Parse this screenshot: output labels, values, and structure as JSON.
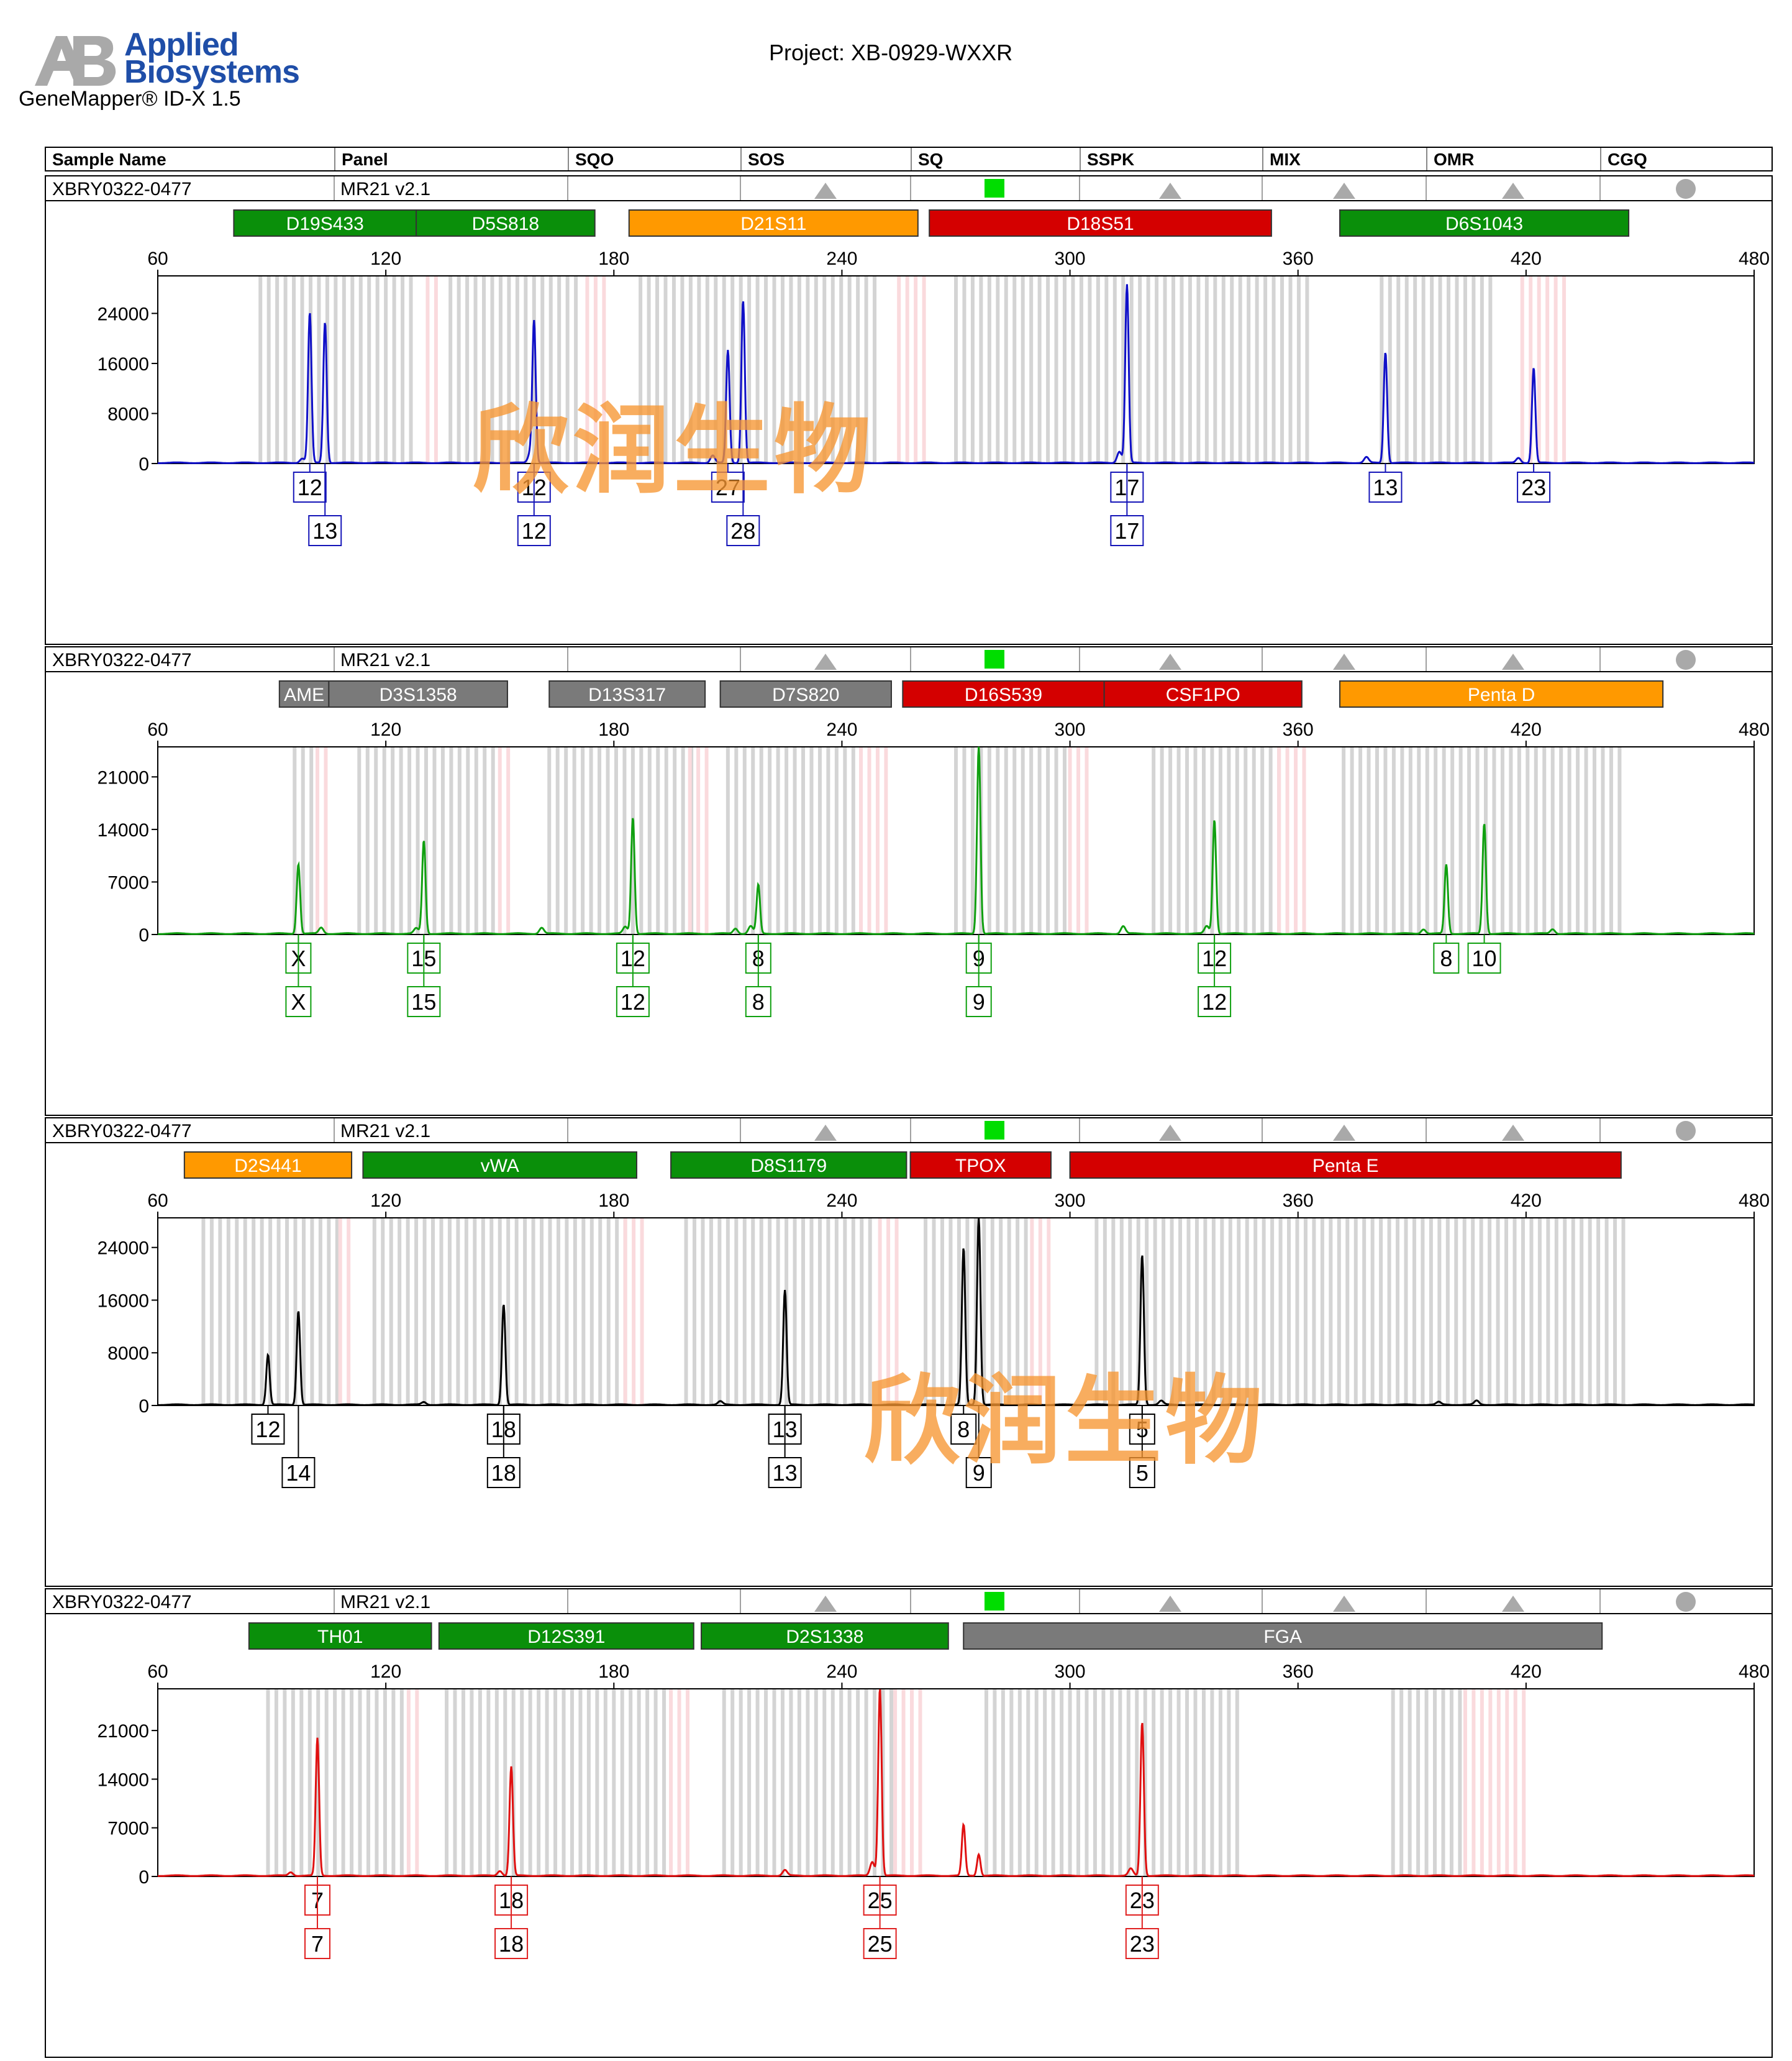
{
  "header": {
    "brand_line1": "Applied",
    "brand_line2": "Biosystems",
    "logo_letters": "AB",
    "software": "GeneMapper® ID-X  1.5",
    "project": "Project: XB-0929-WXXR"
  },
  "columns": [
    "Sample Name",
    "Panel",
    "SQO",
    "SOS",
    "SQ",
    "SSPK",
    "MIX",
    "OMR",
    "CGQ"
  ],
  "colors": {
    "green_marker": "#0a8f0a",
    "orange_marker": "#ff9900",
    "red_marker": "#d40000",
    "gray_marker": "#7a7a7a",
    "flag_pass": "#00dd00",
    "flag_warn": "#a9a9a9",
    "bin_gray": "#d4d4d4",
    "bin_pink": "#fadadd",
    "watermark": "#f6962f"
  },
  "quality_flags": {
    "SOS": "triangle",
    "SQ": "green-square",
    "SSPK": "triangle",
    "MIX": "triangle",
    "OMR": "triangle",
    "CGQ": "circle"
  },
  "watermark": "欣润生物",
  "panels": [
    {
      "sample": "XBRY0322-0477",
      "panel": "MR21  v2.1",
      "dye_color": "#1010c8",
      "label_color": "#1515b8",
      "markers": [
        {
          "name": "D19S433",
          "start": 80,
          "end": 128,
          "color": "green"
        },
        {
          "name": "D5S818",
          "start": 128,
          "end": 175,
          "color": "green"
        },
        {
          "name": "D21S11",
          "start": 184,
          "end": 260,
          "color": "orange"
        },
        {
          "name": "D18S51",
          "start": 263,
          "end": 353,
          "color": "red"
        },
        {
          "name": "D6S1043",
          "start": 371,
          "end": 447,
          "color": "green"
        }
      ],
      "chart_data": {
        "type": "line",
        "xlabel": "",
        "ylabel": "",
        "xlim": [
          60,
          480
        ],
        "xticks": [
          60,
          120,
          180,
          240,
          300,
          360,
          420,
          480
        ],
        "ylim": [
          0,
          30000
        ],
        "yticks": [
          0,
          8000,
          16000,
          24000
        ],
        "peaks": [
          {
            "x": 98,
            "y": 700
          },
          {
            "x": 100,
            "y": 24000
          },
          {
            "x": 104,
            "y": 22500
          },
          {
            "x": 158,
            "y": 1500
          },
          {
            "x": 159,
            "y": 22500
          },
          {
            "x": 206,
            "y": 1200
          },
          {
            "x": 210,
            "y": 18000
          },
          {
            "x": 214,
            "y": 26000
          },
          {
            "x": 313,
            "y": 1800
          },
          {
            "x": 315,
            "y": 28500
          },
          {
            "x": 378,
            "y": 900
          },
          {
            "x": 383,
            "y": 17700
          },
          {
            "x": 418,
            "y": 800
          },
          {
            "x": 422,
            "y": 15200
          }
        ],
        "alleles": [
          {
            "x": 100,
            "row": 1,
            "label": "12"
          },
          {
            "x": 104,
            "row": 2,
            "label": "13"
          },
          {
            "x": 159,
            "row": 1,
            "label": "12"
          },
          {
            "x": 159,
            "row": 2,
            "label": "12"
          },
          {
            "x": 210,
            "row": 1,
            "label": "27"
          },
          {
            "x": 214,
            "row": 2,
            "label": "28"
          },
          {
            "x": 315,
            "row": 1,
            "label": "17"
          },
          {
            "x": 315,
            "row": 2,
            "label": "17"
          },
          {
            "x": 383,
            "row": 1,
            "label": "13"
          },
          {
            "x": 422,
            "row": 1,
            "label": "23"
          }
        ],
        "bins_gray": [
          [
            87,
            127
          ],
          [
            137,
            170
          ],
          [
            187,
            250
          ],
          [
            270,
            364
          ],
          [
            382,
            412
          ]
        ],
        "bins_pink": [
          [
            131,
            135
          ],
          [
            173,
            178
          ],
          [
            255,
            263
          ],
          [
            419,
            430
          ]
        ]
      }
    },
    {
      "sample": "XBRY0322-0477",
      "panel": "MR21  v2.1",
      "dye_color": "#10a010",
      "label_color": "#10a010",
      "markers": [
        {
          "name": "AME",
          "start": 92,
          "end": 105,
          "color": "gray"
        },
        {
          "name": "D3S1358",
          "start": 105,
          "end": 152,
          "color": "gray"
        },
        {
          "name": "D13S317",
          "start": 163,
          "end": 204,
          "color": "gray"
        },
        {
          "name": "D7S820",
          "start": 208,
          "end": 253,
          "color": "gray"
        },
        {
          "name": "D16S539",
          "start": 256,
          "end": 309,
          "color": "red"
        },
        {
          "name": "CSF1PO",
          "start": 309,
          "end": 361,
          "color": "red"
        },
        {
          "name": "Penta D",
          "start": 371,
          "end": 456,
          "color": "orange"
        }
      ],
      "chart_data": {
        "type": "line",
        "xlabel": "",
        "ylabel": "",
        "xlim": [
          60,
          480
        ],
        "xticks": [
          60,
          120,
          180,
          240,
          300,
          360,
          420,
          480
        ],
        "ylim": [
          0,
          25000
        ],
        "yticks": [
          0,
          7000,
          14000,
          21000
        ],
        "peaks": [
          {
            "x": 97,
            "y": 9300
          },
          {
            "x": 103,
            "y": 800
          },
          {
            "x": 128,
            "y": 700
          },
          {
            "x": 130,
            "y": 12400
          },
          {
            "x": 161,
            "y": 800
          },
          {
            "x": 183,
            "y": 900
          },
          {
            "x": 185,
            "y": 15500
          },
          {
            "x": 212,
            "y": 700
          },
          {
            "x": 216,
            "y": 1000
          },
          {
            "x": 218,
            "y": 6500
          },
          {
            "x": 276,
            "y": 25000
          },
          {
            "x": 314,
            "y": 1000
          },
          {
            "x": 336,
            "y": 1000
          },
          {
            "x": 338,
            "y": 15200
          },
          {
            "x": 393,
            "y": 600
          },
          {
            "x": 399,
            "y": 9200
          },
          {
            "x": 409,
            "y": 14700
          },
          {
            "x": 427,
            "y": 600
          }
        ],
        "alleles": [
          {
            "x": 97,
            "row": 1,
            "label": "X"
          },
          {
            "x": 97,
            "row": 2,
            "label": "X"
          },
          {
            "x": 130,
            "row": 1,
            "label": "15"
          },
          {
            "x": 130,
            "row": 2,
            "label": "15"
          },
          {
            "x": 185,
            "row": 1,
            "label": "12"
          },
          {
            "x": 185,
            "row": 2,
            "label": "12"
          },
          {
            "x": 218,
            "row": 1,
            "label": "8"
          },
          {
            "x": 218,
            "row": 2,
            "label": "8"
          },
          {
            "x": 276,
            "row": 1,
            "label": "9"
          },
          {
            "x": 276,
            "row": 2,
            "label": "9"
          },
          {
            "x": 338,
            "row": 1,
            "label": "12"
          },
          {
            "x": 338,
            "row": 2,
            "label": "12"
          },
          {
            "x": 399,
            "row": 1,
            "label": "8"
          },
          {
            "x": 409,
            "row": 1,
            "label": "10"
          }
        ],
        "bins_gray": [
          [
            96,
            102
          ],
          [
            113,
            150
          ],
          [
            163,
            202
          ],
          [
            210,
            244
          ],
          [
            270,
            300
          ],
          [
            322,
            355
          ],
          [
            372,
            446
          ]
        ],
        "bins_pink": [
          [
            102,
            106
          ],
          [
            150,
            154
          ],
          [
            200,
            206
          ],
          [
            245,
            252
          ],
          [
            300,
            305
          ],
          [
            355,
            362
          ]
        ]
      }
    },
    {
      "sample": "XBRY0322-0477",
      "panel": "MR21  v2.1",
      "dye_color": "#000000",
      "label_color": "#000000",
      "markers": [
        {
          "name": "D2S441",
          "start": 67,
          "end": 111,
          "color": "orange"
        },
        {
          "name": "vWA",
          "start": 114,
          "end": 186,
          "color": "green"
        },
        {
          "name": "D8S1179",
          "start": 195,
          "end": 257,
          "color": "green"
        },
        {
          "name": "TPOX",
          "start": 258,
          "end": 295,
          "color": "red"
        },
        {
          "name": "Penta E",
          "start": 300,
          "end": 445,
          "color": "red"
        }
      ],
      "chart_data": {
        "type": "line",
        "xlabel": "",
        "ylabel": "",
        "xlim": [
          60,
          480
        ],
        "xticks": [
          60,
          120,
          180,
          240,
          300,
          360,
          420,
          480
        ],
        "ylim": [
          0,
          28500
        ],
        "yticks": [
          0,
          8000,
          16000,
          24000
        ],
        "peaks": [
          {
            "x": 89,
            "y": 7600
          },
          {
            "x": 97,
            "y": 14300
          },
          {
            "x": 130,
            "y": 400
          },
          {
            "x": 151,
            "y": 15300
          },
          {
            "x": 208,
            "y": 500
          },
          {
            "x": 225,
            "y": 17400
          },
          {
            "x": 272,
            "y": 23800
          },
          {
            "x": 276,
            "y": 28500
          },
          {
            "x": 319,
            "y": 22800
          },
          {
            "x": 324,
            "y": 600
          },
          {
            "x": 397,
            "y": 400
          },
          {
            "x": 407,
            "y": 600
          }
        ],
        "alleles": [
          {
            "x": 89,
            "row": 1,
            "label": "12"
          },
          {
            "x": 97,
            "row": 2,
            "label": "14"
          },
          {
            "x": 151,
            "row": 1,
            "label": "18"
          },
          {
            "x": 151,
            "row": 2,
            "label": "18"
          },
          {
            "x": 225,
            "row": 1,
            "label": "13"
          },
          {
            "x": 225,
            "row": 2,
            "label": "13"
          },
          {
            "x": 272,
            "row": 1,
            "label": "8"
          },
          {
            "x": 276,
            "row": 2,
            "label": "9"
          },
          {
            "x": 319,
            "row": 1,
            "label": "5"
          },
          {
            "x": 319,
            "row": 2,
            "label": "5"
          }
        ],
        "bins_gray": [
          [
            72,
            108
          ],
          [
            117,
            183
          ],
          [
            199,
            249
          ],
          [
            262,
            290
          ],
          [
            307,
            446
          ]
        ],
        "bins_pink": [
          [
            108,
            112
          ],
          [
            183,
            188
          ],
          [
            250,
            256
          ],
          [
            290,
            296
          ]
        ]
      }
    },
    {
      "sample": "XBRY0322-0477",
      "panel": "MR21  v2.1",
      "dye_color": "#e01010",
      "label_color": "#e02020",
      "markers": [
        {
          "name": "TH01",
          "start": 84,
          "end": 132,
          "color": "green"
        },
        {
          "name": "D12S391",
          "start": 134,
          "end": 201,
          "color": "green"
        },
        {
          "name": "D2S1338",
          "start": 203,
          "end": 268,
          "color": "green"
        },
        {
          "name": "FGA",
          "start": 272,
          "end": 440,
          "color": "gray"
        }
      ],
      "chart_data": {
        "type": "line",
        "xlabel": "",
        "ylabel": "",
        "xlim": [
          60,
          480
        ],
        "xticks": [
          60,
          120,
          180,
          240,
          300,
          360,
          420,
          480
        ],
        "ylim": [
          0,
          27000
        ],
        "yticks": [
          0,
          7000,
          14000,
          21000
        ],
        "peaks": [
          {
            "x": 95,
            "y": 500
          },
          {
            "x": 102,
            "y": 19800
          },
          {
            "x": 150,
            "y": 700
          },
          {
            "x": 153,
            "y": 15700
          },
          {
            "x": 225,
            "y": 800
          },
          {
            "x": 248,
            "y": 2000
          },
          {
            "x": 250,
            "y": 27000
          },
          {
            "x": 272,
            "y": 7300
          },
          {
            "x": 276,
            "y": 3100
          },
          {
            "x": 316,
            "y": 1000
          },
          {
            "x": 319,
            "y": 22100
          }
        ],
        "alleles": [
          {
            "x": 102,
            "row": 1,
            "label": "7"
          },
          {
            "x": 102,
            "row": 2,
            "label": "7"
          },
          {
            "x": 153,
            "row": 1,
            "label": "18"
          },
          {
            "x": 153,
            "row": 2,
            "label": "18"
          },
          {
            "x": 250,
            "row": 1,
            "label": "25"
          },
          {
            "x": 250,
            "row": 2,
            "label": "25"
          },
          {
            "x": 319,
            "row": 1,
            "label": "23"
          },
          {
            "x": 319,
            "row": 2,
            "label": "23"
          }
        ],
        "bins_gray": [
          [
            89,
            126
          ],
          [
            136,
            195
          ],
          [
            209,
            254
          ],
          [
            278,
            346
          ],
          [
            385,
            404
          ]
        ],
        "bins_pink": [
          [
            126,
            130
          ],
          [
            195,
            201
          ],
          [
            254,
            262
          ],
          [
            404,
            420
          ]
        ]
      }
    }
  ]
}
